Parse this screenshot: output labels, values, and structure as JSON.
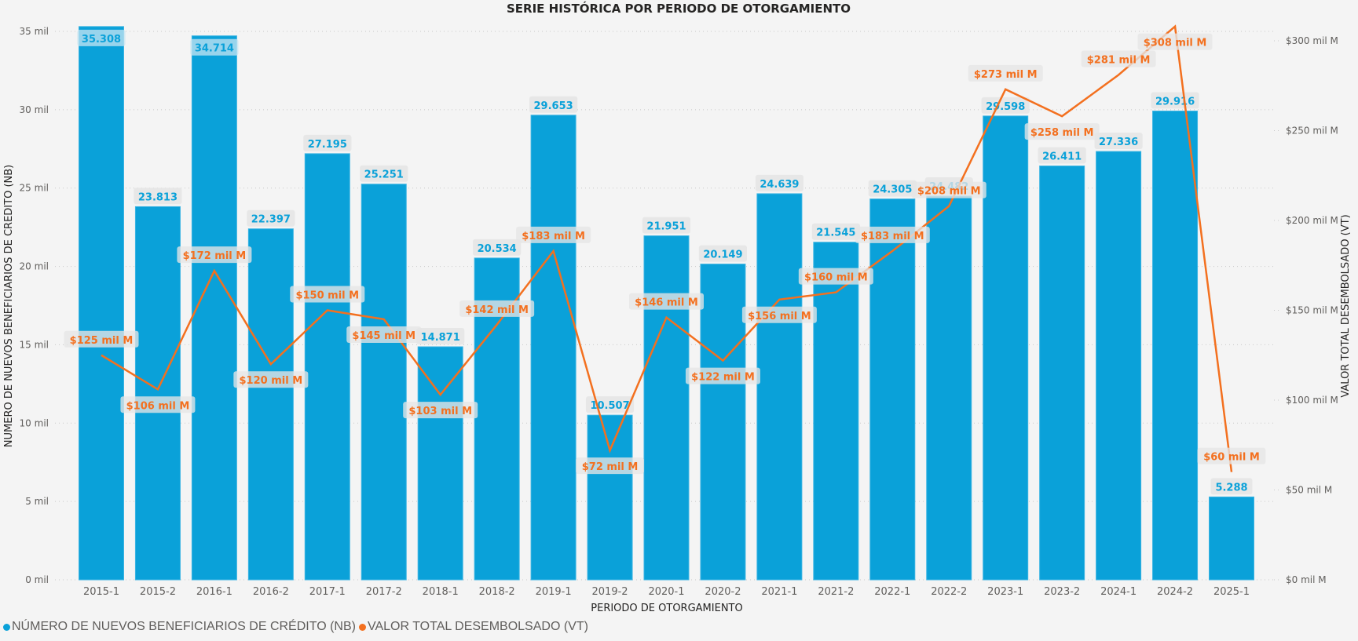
{
  "chart_data": {
    "type": "bar+line",
    "title": "SERIE HISTÓRICA POR PERIODO DE OTORGAMIENTO",
    "xlabel": "PERIODO DE OTORGAMIENTO",
    "ylabel_left": "NUMERO DE NUEVOS BENEFICIARIOS DE CREDITO (NB)",
    "ylabel_right": "VALOR TOTAL DESEMBOLSADO (VT)",
    "categories": [
      "2015-1",
      "2015-2",
      "2016-1",
      "2016-2",
      "2017-1",
      "2017-2",
      "2018-1",
      "2018-2",
      "2019-1",
      "2019-2",
      "2020-1",
      "2020-2",
      "2021-1",
      "2021-2",
      "2022-1",
      "2022-2",
      "2023-1",
      "2023-2",
      "2024-1",
      "2024-2",
      "2025-1"
    ],
    "series": [
      {
        "name": "NÚMERO DE NUEVOS BENEFICIARIOS DE CRÉDITO (NB)",
        "type": "bar",
        "axis": "left",
        "color": "#0AA1D9",
        "values": [
          35308,
          23813,
          34714,
          22397,
          27195,
          25251,
          14871,
          20534,
          29653,
          10507,
          21951,
          20149,
          24639,
          21545,
          24305,
          24482,
          29598,
          26411,
          27336,
          29916,
          5288
        ],
        "labels": [
          "35.308",
          "23.813",
          "34.714",
          "22.397",
          "27.195",
          "25.251",
          "14.871",
          "20.534",
          "29.653",
          "10.507",
          "21.951",
          "20.149",
          "24.639",
          "21.545",
          "24.305",
          "24.482",
          "29.598",
          "26.411",
          "27.336",
          "29.916",
          "5.288"
        ]
      },
      {
        "name": "VALOR TOTAL DESEMBOLSADO (VT)",
        "type": "line",
        "axis": "right",
        "color": "#F3701F",
        "values": [
          125,
          106,
          172,
          120,
          150,
          145,
          103,
          142,
          183,
          72,
          146,
          122,
          156,
          160,
          183,
          208,
          273,
          258,
          281,
          308,
          60
        ],
        "labels": [
          "$125 mil M",
          "$106 mil M",
          "$172 mil M",
          "$120 mil M",
          "$150 mil M",
          "$145 mil M",
          "$103 mil M",
          "$142 mil M",
          "$183 mil M",
          "$72 mil M",
          "$146 mil M",
          "$122 mil M",
          "$156 mil M",
          "$160 mil M",
          "$183 mil M",
          "$208 mil M",
          "$273 mil M",
          "$258 mil M",
          "$281 mil M",
          "$308 mil M",
          "$60 mil M"
        ],
        "label_positions": [
          "above",
          "below",
          "above",
          "below",
          "above",
          "below",
          "below",
          "above",
          "above",
          "below",
          "above",
          "below",
          "below",
          "above",
          "above",
          "above",
          "above",
          "below",
          "above",
          "below",
          "above"
        ]
      }
    ],
    "y_left": {
      "range": [
        0,
        35000
      ],
      "ticks": [
        0,
        5000,
        10000,
        15000,
        20000,
        25000,
        30000,
        35000
      ],
      "tick_labels": [
        "0 mil",
        "5 mil",
        "10 mil",
        "15 mil",
        "20 mil",
        "25 mil",
        "30 mil",
        "35 mil"
      ]
    },
    "y_right": {
      "range": [
        0,
        300
      ],
      "ticks": [
        0,
        50,
        100,
        150,
        200,
        250,
        300
      ],
      "tick_labels": [
        "$0 mil M",
        "$50 mil M",
        "$100 mil M",
        "$150 mil M",
        "$200 mil M",
        "$250 mil M",
        "$300 mil M"
      ]
    },
    "grid": true,
    "legend": "bottom-left"
  },
  "legend": [
    {
      "label": "NÚMERO DE NUEVOS BENEFICIARIOS DE CRÉDITO (NB)",
      "color": "#0AA1D9"
    },
    {
      "label": "VALOR TOTAL DESEMBOLSADO (VT)",
      "color": "#F3701F"
    }
  ],
  "colors": {
    "background": "#F4F4F4",
    "label_box": "#E6E6E6",
    "grid": "#C8C8C8"
  }
}
